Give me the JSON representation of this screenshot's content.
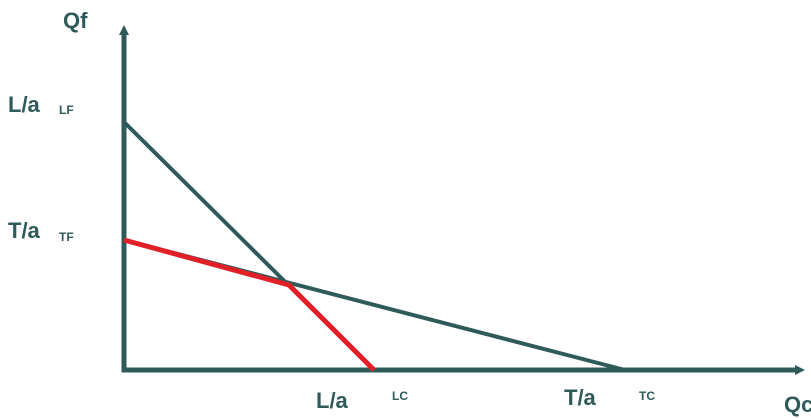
{
  "axes": {
    "y_label": "Qf",
    "x_label": "Qc"
  },
  "labels": {
    "lf_main": "L/a",
    "lf_sub": "LF",
    "tf_main": "T/a",
    "tf_sub": "TF",
    "lc_main": "L/a",
    "lc_sub": "LC",
    "tc_main": "T/a",
    "tc_sub": "TC"
  },
  "colors": {
    "axis": "#2f5a5a",
    "constraint_line": "#2f5a5a",
    "frontier": "#e01f26"
  }
}
